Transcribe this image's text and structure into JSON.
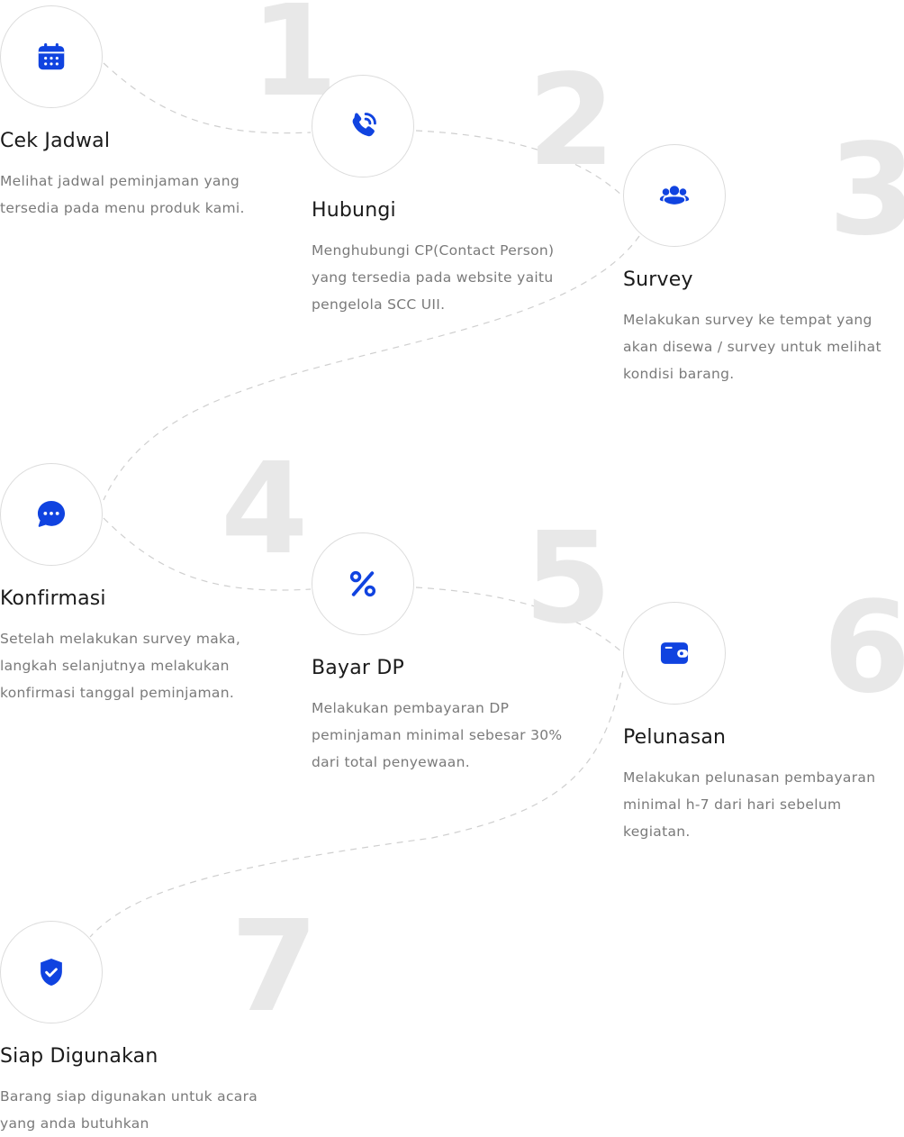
{
  "accent_color": "#1043e0",
  "steps": [
    {
      "number": "1",
      "icon": "calendar-icon",
      "title": "Cek Jadwal",
      "description": "Melihat jadwal peminjaman yang tersedia pada menu produk kami."
    },
    {
      "number": "2",
      "icon": "phone-icon",
      "title": "Hubungi",
      "description": "Menghubungi CP(Contact Person) yang tersedia pada website yaitu pengelola SCC UII."
    },
    {
      "number": "3",
      "icon": "users-icon",
      "title": "Survey",
      "description": "Melakukan survey ke tempat yang akan disewa / survey untuk melihat kondisi barang."
    },
    {
      "number": "4",
      "icon": "chat-icon",
      "title": "Konfirmasi",
      "description": "Setelah melakukan survey maka, langkah selanjutnya melakukan konfirmasi tanggal peminjaman."
    },
    {
      "number": "5",
      "icon": "percent-icon",
      "title": "Bayar DP",
      "description": "Melakukan pembayaran DP peminjaman minimal sebesar 30% dari total penyewaan."
    },
    {
      "number": "6",
      "icon": "wallet-icon",
      "title": "Pelunasan",
      "description": "Melakukan pelunasan pembayaran minimal h-7 dari hari sebelum kegiatan."
    },
    {
      "number": "7",
      "icon": "shield-check-icon",
      "title": "Siap Digunakan",
      "description": "Barang siap digunakan untuk acara yang anda butuhkan"
    }
  ]
}
